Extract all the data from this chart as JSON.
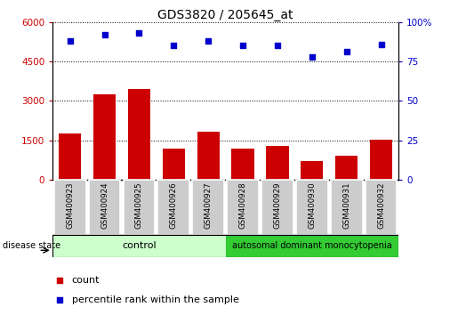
{
  "title": "GDS3820 / 205645_at",
  "samples": [
    "GSM400923",
    "GSM400924",
    "GSM400925",
    "GSM400926",
    "GSM400927",
    "GSM400928",
    "GSM400929",
    "GSM400930",
    "GSM400931",
    "GSM400932"
  ],
  "counts": [
    1750,
    3250,
    3450,
    1180,
    1820,
    1180,
    1280,
    720,
    900,
    1530
  ],
  "percentiles": [
    88,
    92,
    93,
    85,
    88,
    85,
    85,
    78,
    81,
    86
  ],
  "ylim_left": [
    0,
    6000
  ],
  "ylim_right": [
    0,
    100
  ],
  "yticks_left": [
    0,
    1500,
    3000,
    4500,
    6000
  ],
  "ytick_labels_left": [
    "0",
    "1500",
    "3000",
    "4500",
    "6000"
  ],
  "yticks_right": [
    0,
    25,
    50,
    75,
    100
  ],
  "ytick_labels_right": [
    "0",
    "25",
    "50",
    "75",
    "100%"
  ],
  "bar_color": "#cc0000",
  "dot_color": "#0000cc",
  "control_samples": 5,
  "control_label": "control",
  "disease_label": "autosomal dominant monocytopenia",
  "disease_state_label": "disease state",
  "legend_count": "count",
  "legend_percentile": "percentile rank within the sample",
  "control_bg": "#ccffcc",
  "disease_bg": "#33cc33",
  "sample_bg": "#cccccc",
  "plot_bg": "#ffffff",
  "grid_color": "#000000"
}
